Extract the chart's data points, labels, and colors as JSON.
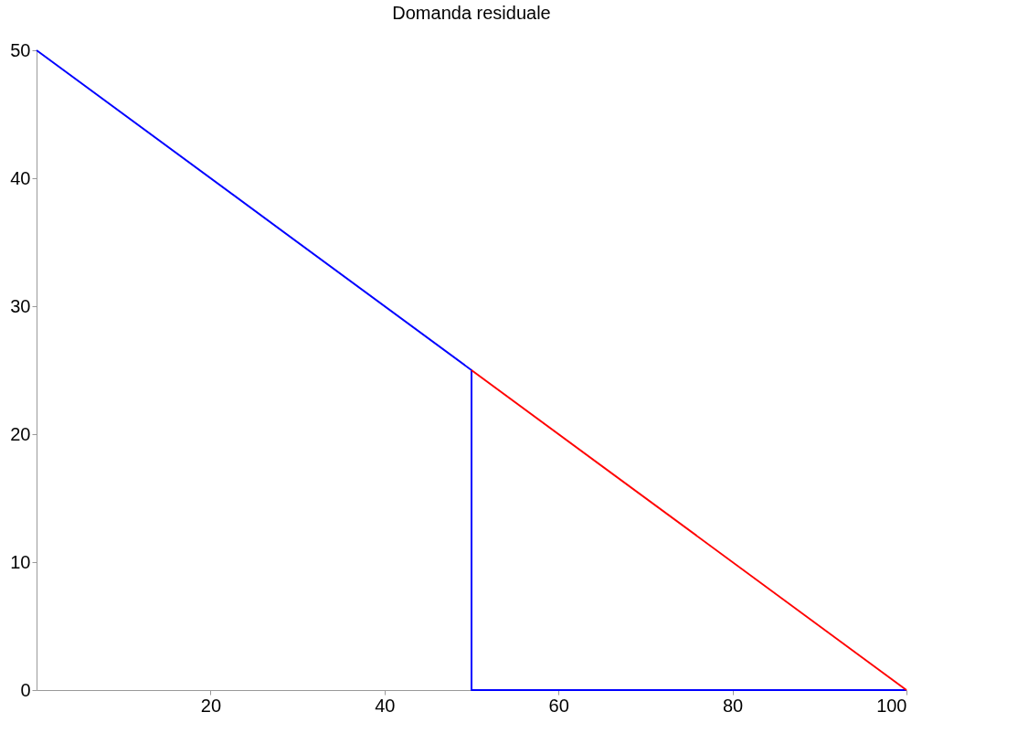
{
  "chart_data": {
    "type": "line",
    "title": "Domanda residuale",
    "series": [
      {
        "color": "#0000ff",
        "x": [
          0,
          50,
          50,
          100
        ],
        "values": [
          50,
          25,
          0,
          0
        ]
      },
      {
        "color": "#ff0000",
        "x": [
          50,
          100
        ],
        "values": [
          25,
          0
        ]
      }
    ],
    "xlim": [
      0,
      100
    ],
    "xticks": [
      20,
      40,
      60,
      80,
      100
    ],
    "ylim": [
      0,
      50
    ],
    "yticks": [
      0,
      10,
      20,
      30,
      40,
      50
    ],
    "grid": false,
    "marker": "none",
    "line_style": "solid"
  }
}
